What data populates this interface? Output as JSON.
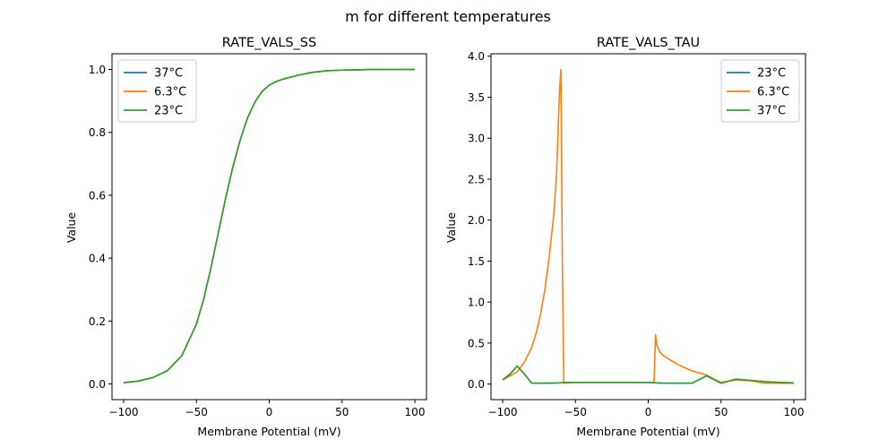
{
  "figure": {
    "suptitle": "m for different temperatures"
  },
  "chart_data": [
    {
      "type": "line",
      "title": "RATE_VALS_SS",
      "xlabel": "Membrane Potential (mV)",
      "ylabel": "Value",
      "xlim": [
        -108,
        108
      ],
      "ylim": [
        -0.05,
        1.05
      ],
      "xticks": [
        -100,
        -50,
        0,
        50,
        100
      ],
      "xtick_labels": [
        "−100",
        "−50",
        "0",
        "50",
        "100"
      ],
      "yticks": [
        0,
        0.2,
        0.4,
        0.6,
        0.8,
        1.0
      ],
      "ytick_labels": [
        "0.0",
        "0.2",
        "0.4",
        "0.6",
        "0.8",
        "1.0"
      ],
      "grid": false,
      "legend": "top-left",
      "series": [
        {
          "name": "37°C",
          "color": "#1f77b4",
          "x": [
            -100,
            -90,
            -80,
            -70,
            -60,
            -50,
            -45,
            -40,
            -35,
            -30,
            -25,
            -20,
            -15,
            -10,
            -5,
            0,
            5,
            10,
            20,
            30,
            40,
            50,
            60,
            70,
            80,
            90,
            100
          ],
          "y": [
            0.004,
            0.009,
            0.02,
            0.042,
            0.09,
            0.19,
            0.27,
            0.37,
            0.48,
            0.59,
            0.69,
            0.775,
            0.845,
            0.895,
            0.93,
            0.95,
            0.962,
            0.97,
            0.982,
            0.991,
            0.996,
            0.998,
            0.999,
            1.0,
            1.0,
            1.0,
            1.0
          ]
        },
        {
          "name": "6.3°C",
          "color": "#ff7f0e",
          "x": [
            -100,
            -90,
            -80,
            -70,
            -60,
            -50,
            -45,
            -40,
            -35,
            -30,
            -25,
            -20,
            -15,
            -10,
            -5,
            0,
            5,
            10,
            20,
            30,
            40,
            50,
            60,
            70,
            80,
            90,
            100
          ],
          "y": [
            0.004,
            0.009,
            0.02,
            0.042,
            0.09,
            0.19,
            0.27,
            0.37,
            0.48,
            0.59,
            0.69,
            0.775,
            0.845,
            0.895,
            0.93,
            0.95,
            0.962,
            0.97,
            0.982,
            0.991,
            0.996,
            0.998,
            0.999,
            1.0,
            1.0,
            1.0,
            1.0
          ]
        },
        {
          "name": "23°C",
          "color": "#2ca02c",
          "x": [
            -100,
            -90,
            -80,
            -70,
            -60,
            -50,
            -45,
            -40,
            -35,
            -30,
            -25,
            -20,
            -15,
            -10,
            -5,
            0,
            5,
            10,
            20,
            30,
            40,
            50,
            60,
            70,
            80,
            90,
            100
          ],
          "y": [
            0.004,
            0.009,
            0.02,
            0.042,
            0.09,
            0.19,
            0.27,
            0.37,
            0.48,
            0.59,
            0.69,
            0.775,
            0.845,
            0.895,
            0.93,
            0.95,
            0.962,
            0.97,
            0.982,
            0.991,
            0.996,
            0.998,
            0.999,
            1.0,
            1.0,
            1.0,
            1.0
          ]
        }
      ]
    },
    {
      "type": "line",
      "title": "RATE_VALS_TAU",
      "xlabel": "Membrane Potential (mV)",
      "ylabel": "Value",
      "xlim": [
        -108,
        108
      ],
      "ylim": [
        -0.19,
        4.03
      ],
      "xticks": [
        -100,
        -50,
        0,
        50,
        100
      ],
      "xtick_labels": [
        "−100",
        "−50",
        "0",
        "50",
        "100"
      ],
      "yticks": [
        0,
        0.5,
        1.0,
        1.5,
        2.0,
        2.5,
        3.0,
        3.5,
        4.0
      ],
      "ytick_labels": [
        "0.0",
        "0.5",
        "1.0",
        "1.5",
        "2.0",
        "2.5",
        "3.0",
        "3.5",
        "4.0"
      ],
      "grid": false,
      "legend": "top-right",
      "series": [
        {
          "name": "23°C",
          "color": "#1f77b4",
          "x": [
            -100,
            -95,
            -90,
            -85,
            -80,
            -70,
            -60,
            -58,
            -40,
            -20,
            0,
            10,
            20,
            30,
            40,
            50,
            60,
            70,
            80,
            90,
            100
          ],
          "y": [
            0.05,
            0.12,
            0.22,
            0.12,
            0.01,
            0.01,
            0.015,
            0.02,
            0.02,
            0.02,
            0.02,
            0.01,
            0.01,
            0.01,
            0.1,
            0.01,
            0.06,
            0.045,
            0.03,
            0.02,
            0.015
          ]
        },
        {
          "name": "6.3°C",
          "color": "#ff7f0e",
          "x": [
            -100,
            -90,
            -85,
            -80,
            -77,
            -74,
            -71,
            -68,
            -65,
            -63,
            -61,
            -60,
            -59,
            -58,
            -50,
            -40,
            -20,
            0,
            2,
            4,
            5,
            6,
            8,
            10,
            20,
            30,
            40,
            50,
            60,
            70,
            80,
            90,
            100
          ],
          "y": [
            0.05,
            0.15,
            0.27,
            0.45,
            0.62,
            0.85,
            1.15,
            1.55,
            2.05,
            2.55,
            3.55,
            3.84,
            1.5,
            0.01,
            0.02,
            0.02,
            0.02,
            0.02,
            0.02,
            0.02,
            0.6,
            0.47,
            0.39,
            0.35,
            0.24,
            0.16,
            0.11,
            0.02,
            0.05,
            0.04,
            0.01,
            0.01,
            0.01
          ]
        },
        {
          "name": "37°C",
          "color": "#2ca02c",
          "x": [
            -100,
            -95,
            -90,
            -85,
            -80,
            -70,
            -60,
            -58,
            -40,
            -20,
            0,
            10,
            20,
            30,
            40,
            50,
            60,
            70,
            80,
            90,
            100
          ],
          "y": [
            0.05,
            0.12,
            0.22,
            0.12,
            0.01,
            0.01,
            0.015,
            0.02,
            0.02,
            0.02,
            0.02,
            0.01,
            0.01,
            0.01,
            0.1,
            0.01,
            0.06,
            0.045,
            0.03,
            0.02,
            0.015
          ]
        }
      ]
    }
  ]
}
